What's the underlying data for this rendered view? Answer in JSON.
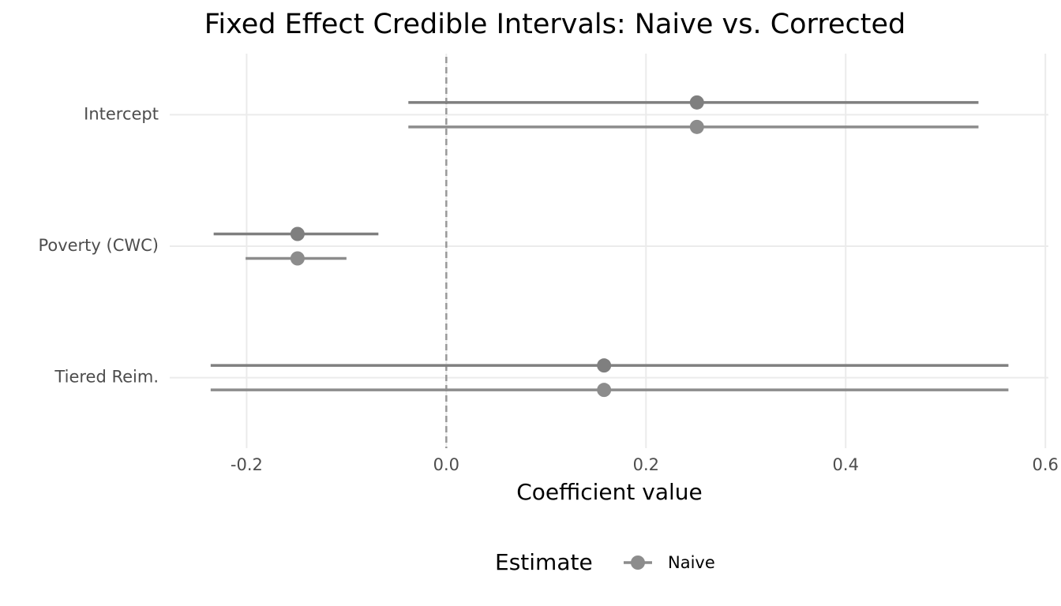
{
  "chart_data": {
    "type": "interval",
    "title": "Fixed Effect Credible Intervals: Naive vs. Corrected",
    "x_label": "Coefficient value",
    "legend_title": "Estimate",
    "categories": [
      "Intercept",
      "Poverty (CWC)",
      "Tiered Reim."
    ],
    "series": [
      {
        "color": "#7f7f7f",
        "values": [
          0.251,
          -0.149,
          0.158
        ],
        "lower": [
          -0.038,
          -0.233,
          -0.236
        ],
        "upper": [
          0.533,
          -0.068,
          0.563
        ]
      },
      {
        "name": "Naive",
        "color": "#8c8c8c",
        "values": [
          0.251,
          -0.149,
          0.158
        ],
        "lower": [
          -0.038,
          -0.201,
          -0.236
        ],
        "upper": [
          0.533,
          -0.1,
          0.563
        ]
      }
    ],
    "xlim": [
      -0.277,
      0.603
    ],
    "xticks": [
      -0.2,
      {
        "value": 0,
        "label": "0.0"
      },
      0.2,
      0.4,
      0.6
    ],
    "reference_line": 0,
    "grid": true,
    "legend_position": "bottom"
  }
}
